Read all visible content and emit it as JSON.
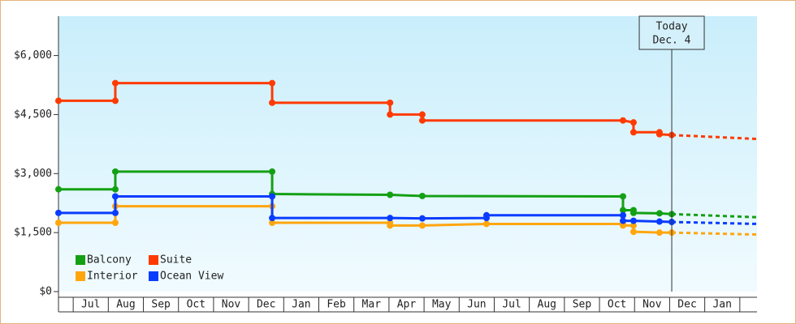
{
  "chart_data": {
    "type": "line",
    "ylim": [
      0,
      7000
    ],
    "yticks": [
      {
        "value": 0,
        "label": "$0"
      },
      {
        "value": 1500,
        "label": "$1,500"
      },
      {
        "value": 3000,
        "label": "$3,000"
      },
      {
        "value": 4500,
        "label": "$4,500"
      },
      {
        "value": 6000,
        "label": "$6,000"
      }
    ],
    "xlim": [
      -0.42,
      19.49
    ],
    "xticks": [
      {
        "value": 0.5,
        "label": "Jul"
      },
      {
        "value": 1.5,
        "label": "Aug"
      },
      {
        "value": 2.5,
        "label": "Sep"
      },
      {
        "value": 3.5,
        "label": "Oct"
      },
      {
        "value": 4.5,
        "label": "Nov"
      },
      {
        "value": 5.5,
        "label": "Dec"
      },
      {
        "value": 6.5,
        "label": "Jan"
      },
      {
        "value": 7.5,
        "label": "Feb"
      },
      {
        "value": 8.5,
        "label": "Mar"
      },
      {
        "value": 9.5,
        "label": "Apr"
      },
      {
        "value": 10.5,
        "label": "May"
      },
      {
        "value": 11.5,
        "label": "Jun"
      },
      {
        "value": 12.5,
        "label": "Jul"
      },
      {
        "value": 13.5,
        "label": "Aug"
      },
      {
        "value": 14.5,
        "label": "Sep"
      },
      {
        "value": 15.5,
        "label": "Oct"
      },
      {
        "value": 16.5,
        "label": "Nov"
      },
      {
        "value": 17.5,
        "label": "Dec"
      },
      {
        "value": 18.5,
        "label": "Jan"
      }
    ],
    "annotation": {
      "x": 17.06,
      "lines": [
        "Today",
        "Dec. 4"
      ]
    },
    "series": [
      {
        "name": "Balcony",
        "color": "#14a014",
        "x": [
          -0.42,
          1.2,
          1.2,
          5.67,
          5.67,
          9.03,
          9.95,
          15.67,
          15.67,
          15.97,
          15.97,
          16.71,
          17.06
        ],
        "values": [
          2600,
          2600,
          3050,
          3050,
          2480,
          2460,
          2430,
          2420,
          2070,
          2070,
          2000,
          1990,
          1970
        ],
        "projection": {
          "x": [
            17.06,
            19.49
          ],
          "values": [
            1970,
            1890
          ]
        }
      },
      {
        "name": "Suite",
        "color": "#ff3a00",
        "x": [
          -0.42,
          1.2,
          1.2,
          5.67,
          5.67,
          9.03,
          9.03,
          9.95,
          9.95,
          15.67,
          15.97,
          15.97,
          16.71,
          16.71,
          17.06
        ],
        "values": [
          4850,
          4850,
          5300,
          5300,
          4800,
          4800,
          4500,
          4500,
          4350,
          4350,
          4300,
          4050,
          4050,
          4000,
          3980
        ],
        "projection": {
          "x": [
            17.06,
            19.49
          ],
          "values": [
            3980,
            3880
          ]
        }
      },
      {
        "name": "Interior",
        "color": "#ffa60f",
        "x": [
          -0.42,
          1.2,
          1.2,
          5.67,
          5.67,
          9.03,
          9.03,
          9.95,
          11.78,
          15.67,
          15.67,
          15.97,
          15.97,
          16.71,
          17.06
        ],
        "values": [
          1750,
          1750,
          2170,
          2170,
          1750,
          1750,
          1680,
          1680,
          1720,
          1720,
          1680,
          1680,
          1520,
          1500,
          1500
        ],
        "projection": {
          "x": [
            17.06,
            19.49
          ],
          "values": [
            1500,
            1450
          ]
        }
      },
      {
        "name": "Ocean View",
        "color": "#0a3cff",
        "x": [
          -0.42,
          1.2,
          1.2,
          5.67,
          5.67,
          9.03,
          9.95,
          11.78,
          11.78,
          15.67,
          15.67,
          15.97,
          16.71,
          17.06
        ],
        "values": [
          2000,
          2000,
          2420,
          2420,
          1870,
          1870,
          1860,
          1870,
          1940,
          1940,
          1800,
          1800,
          1780,
          1770
        ],
        "projection": {
          "x": [
            17.06,
            19.49
          ],
          "values": [
            1770,
            1720
          ]
        }
      }
    ]
  }
}
